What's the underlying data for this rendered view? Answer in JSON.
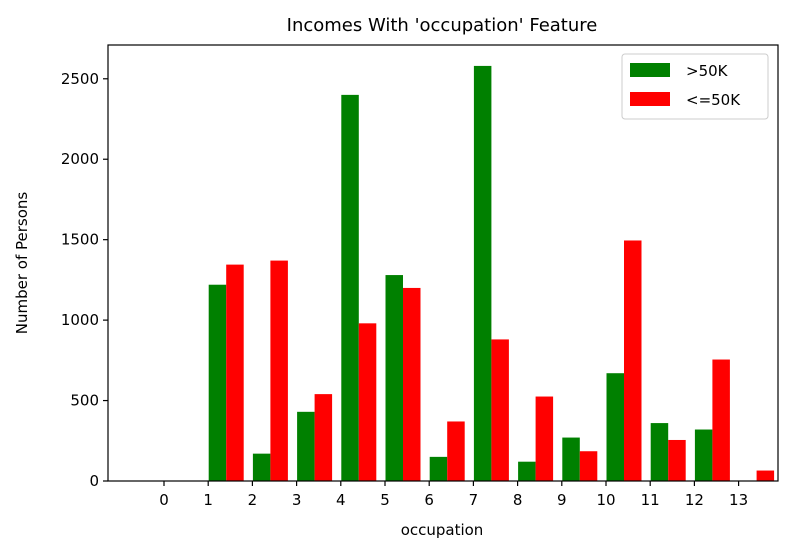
{
  "chart_data": {
    "type": "bar",
    "title": "Incomes With 'occupation' Feature",
    "xlabel": "occupation",
    "ylabel": "Number of Persons",
    "categories": [
      "0",
      "1",
      "2",
      "3",
      "4",
      "5",
      "6",
      "7",
      "8",
      "9",
      "10",
      "11",
      "12",
      "13"
    ],
    "series": [
      {
        "name": ">50K",
        "color": "#008000",
        "values": [
          0,
          1220,
          170,
          430,
          2400,
          1280,
          150,
          2580,
          120,
          270,
          670,
          360,
          320,
          0
        ]
      },
      {
        "name": "<=50K",
        "color": "#ff0000",
        "values": [
          0,
          1345,
          1370,
          540,
          980,
          1200,
          370,
          880,
          525,
          185,
          1495,
          255,
          755,
          65
        ]
      }
    ],
    "yticks": [
      0,
      500,
      1000,
      1500,
      2000,
      2500
    ],
    "ylim": [
      0,
      2710
    ],
    "legend_position": "top-right",
    "grid": false
  }
}
